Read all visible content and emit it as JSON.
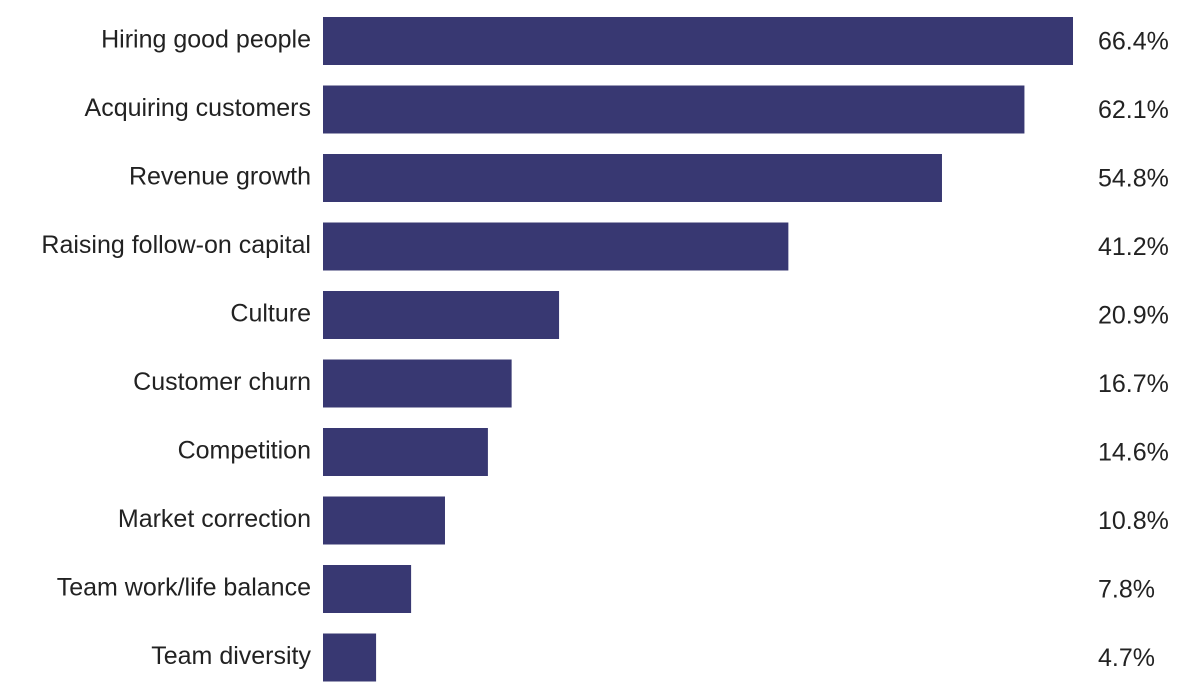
{
  "chart_data": {
    "type": "bar",
    "orientation": "horizontal",
    "color": "#383872",
    "categories": [
      "Hiring good people",
      "Acquiring customers",
      "Revenue growth",
      "Raising follow-on capital",
      "Culture",
      "Customer churn",
      "Competition",
      "Market correction",
      "Team work/life balance",
      "Team diversity"
    ],
    "values": [
      66.4,
      62.1,
      54.8,
      41.2,
      20.9,
      16.7,
      14.6,
      10.8,
      7.8,
      4.7
    ],
    "value_labels": [
      "66.4%",
      "62.1%",
      "54.8%",
      "41.2%",
      "20.9%",
      "16.7%",
      "14.6%",
      "10.8%",
      "7.8%",
      "4.7%"
    ]
  }
}
